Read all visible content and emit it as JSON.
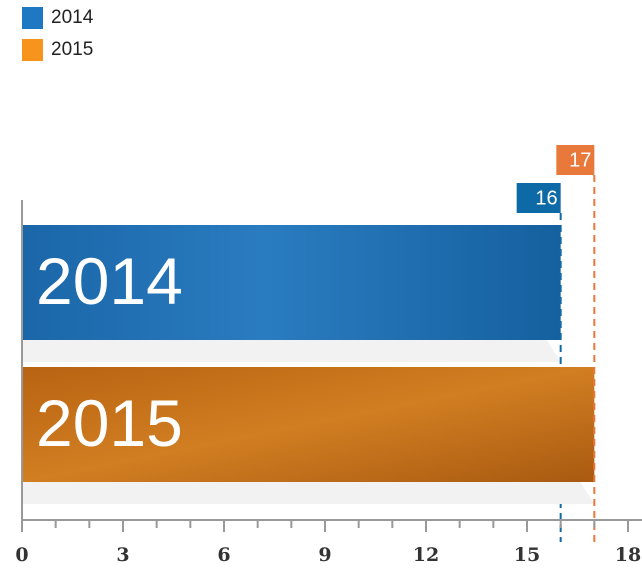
{
  "chart_data": {
    "type": "bar",
    "orientation": "horizontal",
    "categories": [
      "2014",
      "2015"
    ],
    "values": [
      16,
      17
    ],
    "colors": [
      "#1c6fb5",
      "#c8741a"
    ],
    "legend_colors": [
      "#1e78c2",
      "#f7941d"
    ],
    "label_colors": [
      "#0e6aa6",
      "#e8793a"
    ],
    "xlim": [
      0,
      18
    ],
    "xticks": [
      0,
      3,
      6,
      9,
      12,
      15,
      18
    ],
    "legend": "top-left"
  }
}
